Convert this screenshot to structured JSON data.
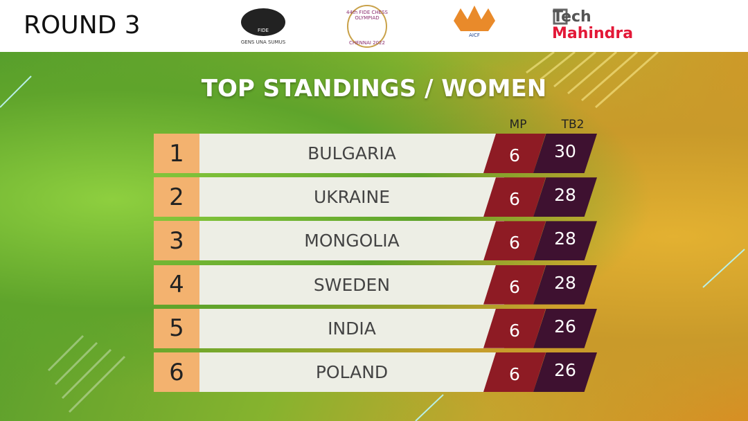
{
  "header": {
    "round": "ROUND 3",
    "logos": {
      "fide": "FIDE",
      "fide_motto": "GENS UNA SUMUS",
      "olympiad": "44th FIDE CHESS OLYMPIAD",
      "olympiad_place": "CHENNAI 2022",
      "aicf": "AICF",
      "sponsor_top": "Tech",
      "sponsor_bottom": "Mahindra"
    }
  },
  "table": {
    "title": "TOP STANDINGS / WOMEN",
    "columns": [
      "MP",
      "TB2"
    ],
    "rows": [
      {
        "rank": 1,
        "team": "BULGARIA",
        "mp": 6,
        "tb2": 30
      },
      {
        "rank": 2,
        "team": "UKRAINE",
        "mp": 6,
        "tb2": 28
      },
      {
        "rank": 3,
        "team": "MONGOLIA",
        "mp": 6,
        "tb2": 28
      },
      {
        "rank": 4,
        "team": "SWEDEN",
        "mp": 6,
        "tb2": 28
      },
      {
        "rank": 5,
        "team": "INDIA",
        "mp": 6,
        "tb2": 26
      },
      {
        "rank": 6,
        "team": "POLAND",
        "mp": 6,
        "tb2": 26
      }
    ]
  }
}
